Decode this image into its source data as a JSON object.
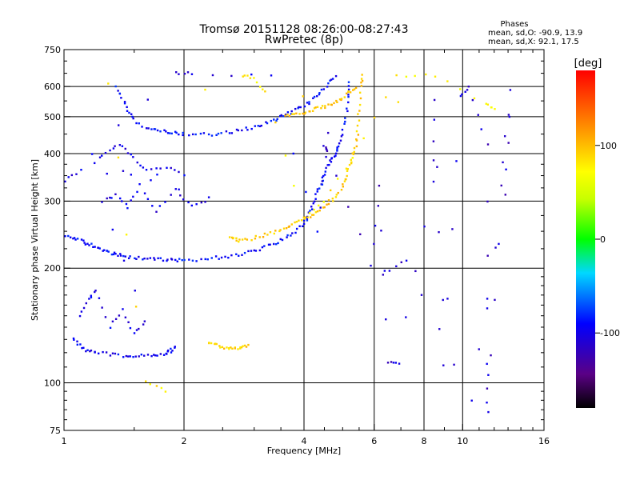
{
  "chart_data": {
    "type": "scatter",
    "title": "Tromsø 20151128 08:26:00-08:27:43",
    "subtitle": "RwPretec (8p)",
    "info": {
      "heading": "Phases",
      "line1": "mean, sd,O: -90.9, 13.9",
      "line2": "mean, sd,X:  92.1, 17.5"
    },
    "xlabel": "Frequency [MHz]",
    "ylabel": "Stationary phase Virtual Height [km]",
    "x_scale": "log",
    "y_scale": "log",
    "xlim": [
      1,
      16
    ],
    "ylim": [
      75,
      750
    ],
    "x_ticks": [
      1,
      2,
      4,
      6,
      8,
      10,
      16
    ],
    "x_tick_labels": [
      "1",
      "2",
      "4",
      "6",
      "8",
      "10",
      "16"
    ],
    "x_gridlines": [
      2,
      4,
      6,
      8,
      10
    ],
    "y_ticks": [
      75,
      100,
      200,
      300,
      400,
      500,
      600,
      750
    ],
    "y_tick_labels": [
      "75",
      "100",
      "200",
      "300",
      "400",
      "500",
      "600",
      "750"
    ],
    "y_gridlines": [
      100,
      200,
      300,
      400,
      500,
      600
    ],
    "grid": true,
    "colorbar": {
      "label": "[deg]",
      "range": [
        -180,
        180
      ],
      "ticks": [
        100,
        0,
        -100
      ],
      "tick_labels": [
        "100",
        "0",
        "-100"
      ],
      "colormap": "rainbow (black-violet-blue-cyan-green-yellow-orange-red)"
    },
    "series": [
      {
        "kind": "O-mode F2 lower trace",
        "phase_deg": -90,
        "points": [
          [
            1.0,
            242
          ],
          [
            1.05,
            240
          ],
          [
            1.1,
            236
          ],
          [
            1.15,
            232
          ],
          [
            1.2,
            228
          ],
          [
            1.25,
            224
          ],
          [
            1.3,
            220
          ],
          [
            1.35,
            217
          ],
          [
            1.4,
            215
          ],
          [
            1.5,
            213
          ],
          [
            1.6,
            212
          ],
          [
            1.7,
            211
          ],
          [
            1.8,
            210
          ],
          [
            1.9,
            210
          ],
          [
            2.0,
            210
          ],
          [
            2.2,
            211
          ],
          [
            2.4,
            213
          ],
          [
            2.6,
            215
          ],
          [
            2.8,
            218
          ],
          [
            3.0,
            222
          ],
          [
            3.2,
            227
          ],
          [
            3.4,
            233
          ],
          [
            3.6,
            240
          ],
          [
            3.8,
            250
          ],
          [
            4.0,
            262
          ],
          [
            4.1,
            275
          ],
          [
            4.2,
            290
          ],
          [
            4.3,
            310
          ],
          [
            4.4,
            330
          ],
          [
            4.5,
            350
          ],
          [
            4.6,
            370
          ],
          [
            4.7,
            385
          ],
          [
            4.8,
            400
          ],
          [
            4.9,
            420
          ],
          [
            5.0,
            450
          ],
          [
            5.1,
            500
          ],
          [
            5.15,
            560
          ],
          [
            5.2,
            610
          ]
        ]
      },
      {
        "kind": "X-mode F2 lower trace",
        "phase_deg": 95,
        "points": [
          [
            2.6,
            240
          ],
          [
            2.7,
            238
          ],
          [
            2.8,
            236
          ],
          [
            3.0,
            240
          ],
          [
            3.2,
            245
          ],
          [
            3.4,
            250
          ],
          [
            3.6,
            256
          ],
          [
            3.8,
            262
          ],
          [
            4.0,
            268
          ],
          [
            4.2,
            276
          ],
          [
            4.4,
            285
          ],
          [
            4.6,
            296
          ],
          [
            4.8,
            310
          ],
          [
            5.0,
            325
          ],
          [
            5.1,
            345
          ],
          [
            5.2,
            370
          ],
          [
            5.3,
            395
          ],
          [
            5.4,
            420
          ],
          [
            5.45,
            460
          ],
          [
            5.5,
            520
          ],
          [
            5.55,
            600
          ],
          [
            5.6,
            640
          ]
        ]
      },
      {
        "kind": "O-mode F2 upper trace",
        "phase_deg": -90,
        "points": [
          [
            1.35,
            600
          ],
          [
            1.4,
            560
          ],
          [
            1.45,
            520
          ],
          [
            1.5,
            490
          ],
          [
            1.6,
            470
          ],
          [
            1.7,
            460
          ],
          [
            1.8,
            455
          ],
          [
            1.9,
            452
          ],
          [
            2.0,
            450
          ],
          [
            2.2,
            448
          ],
          [
            2.4,
            450
          ],
          [
            2.6,
            455
          ],
          [
            2.8,
            462
          ],
          [
            3.0,
            470
          ],
          [
            3.2,
            480
          ],
          [
            3.4,
            492
          ],
          [
            3.6,
            505
          ],
          [
            3.8,
            520
          ],
          [
            4.0,
            535
          ],
          [
            4.2,
            555
          ],
          [
            4.4,
            580
          ],
          [
            4.6,
            610
          ],
          [
            4.8,
            640
          ]
        ]
      },
      {
        "kind": "X-mode F2 upper trace",
        "phase_deg": 95,
        "points": [
          [
            3.6,
            500
          ],
          [
            3.8,
            505
          ],
          [
            4.0,
            512
          ],
          [
            4.2,
            520
          ],
          [
            4.4,
            528
          ],
          [
            4.6,
            535
          ],
          [
            4.8,
            545
          ],
          [
            5.0,
            560
          ],
          [
            5.2,
            580
          ],
          [
            5.4,
            600
          ]
        ]
      },
      {
        "kind": "O-mode E/Es trace",
        "phase_deg": -95,
        "points": [
          [
            1.05,
            130
          ],
          [
            1.1,
            125
          ],
          [
            1.15,
            121
          ],
          [
            1.2,
            120
          ],
          [
            1.3,
            119
          ],
          [
            1.4,
            118
          ],
          [
            1.5,
            118
          ],
          [
            1.6,
            118
          ],
          [
            1.7,
            118
          ],
          [
            1.8,
            119
          ],
          [
            1.85,
            121
          ],
          [
            1.9,
            124
          ]
        ]
      },
      {
        "kind": "X-mode short segment",
        "phase_deg": 90,
        "points": [
          [
            2.3,
            127
          ],
          [
            2.4,
            126
          ],
          [
            2.5,
            124
          ],
          [
            2.6,
            123
          ],
          [
            2.7,
            123
          ],
          [
            2.8,
            124
          ],
          [
            2.9,
            126
          ]
        ]
      },
      {
        "kind": "O-mode scattered echoes",
        "phase_deg": -100,
        "points": [
          [
            1.1,
            150
          ],
          [
            1.15,
            165
          ],
          [
            1.2,
            175
          ],
          [
            1.3,
            140
          ],
          [
            1.4,
            155
          ],
          [
            1.5,
            135
          ],
          [
            1.6,
            145
          ],
          [
            1.25,
            300
          ],
          [
            1.35,
            310
          ],
          [
            1.45,
            290
          ],
          [
            1.55,
            330
          ],
          [
            1.7,
            280
          ],
          [
            1.9,
            320
          ],
          [
            2.1,
            290
          ],
          [
            2.3,
            305
          ],
          [
            1.2,
            380
          ],
          [
            1.3,
            410
          ],
          [
            1.4,
            420
          ],
          [
            1.5,
            390
          ],
          [
            1.6,
            360
          ],
          [
            1.8,
            370
          ],
          [
            2.0,
            350
          ],
          [
            1.1,
            360
          ],
          [
            1.0,
            340
          ],
          [
            1.9,
            650
          ],
          [
            2.1,
            650
          ],
          [
            3.3,
            640
          ],
          [
            4.3,
            250
          ],
          [
            4.6,
            450
          ]
        ]
      },
      {
        "kind": "X-mode scattered echoes",
        "phase_deg": 80,
        "points": [
          [
            2.8,
            640
          ],
          [
            3.0,
            630
          ],
          [
            3.2,
            580
          ],
          [
            4.0,
            270
          ],
          [
            4.5,
            300
          ],
          [
            5.3,
            390
          ],
          [
            6.8,
            640
          ],
          [
            8.5,
            640
          ],
          [
            11.5,
            540
          ],
          [
            12,
            520
          ],
          [
            1.3,
            610
          ],
          [
            1.6,
            100
          ],
          [
            1.8,
            95
          ]
        ]
      },
      {
        "kind": "high-frequency sparse echoes",
        "phase_deg": -110,
        "points": [
          [
            4.6,
            410
          ],
          [
            4.5,
            415
          ],
          [
            5.9,
            205
          ],
          [
            6.2,
            330
          ],
          [
            6.5,
            113
          ],
          [
            6.9,
            112
          ],
          [
            8.4,
            340
          ],
          [
            8.5,
            555
          ],
          [
            9.0,
            111
          ],
          [
            9.9,
            570
          ],
          [
            10.4,
            600
          ],
          [
            11.5,
            420
          ],
          [
            11.5,
            112
          ],
          [
            11.6,
            83
          ],
          [
            12.5,
            330
          ],
          [
            13.2,
            590
          ],
          [
            12.8,
            310
          ],
          [
            10.5,
            90
          ],
          [
            7.2,
            210
          ],
          [
            6.4,
            195
          ]
        ]
      }
    ]
  }
}
